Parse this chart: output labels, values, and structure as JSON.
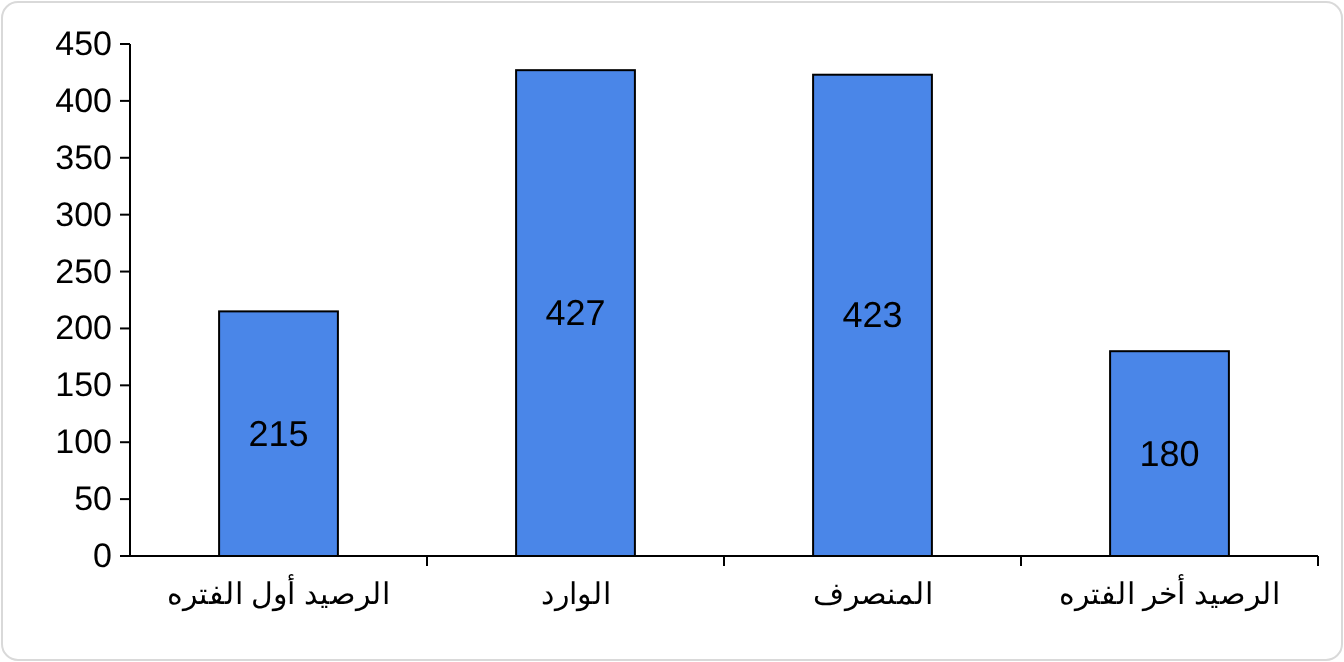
{
  "chart_data": {
    "type": "bar",
    "categories": [
      "الرصيد أول الفتره",
      "الوارد",
      "المنصرف",
      "الرصيد أخر الفتره"
    ],
    "values": [
      215,
      427,
      423,
      180
    ],
    "color": "#4a86e8",
    "ylim": [
      0,
      450
    ],
    "yticks": [
      0,
      50,
      100,
      150,
      200,
      250,
      300,
      350,
      400,
      450
    ],
    "data_labels": true
  }
}
